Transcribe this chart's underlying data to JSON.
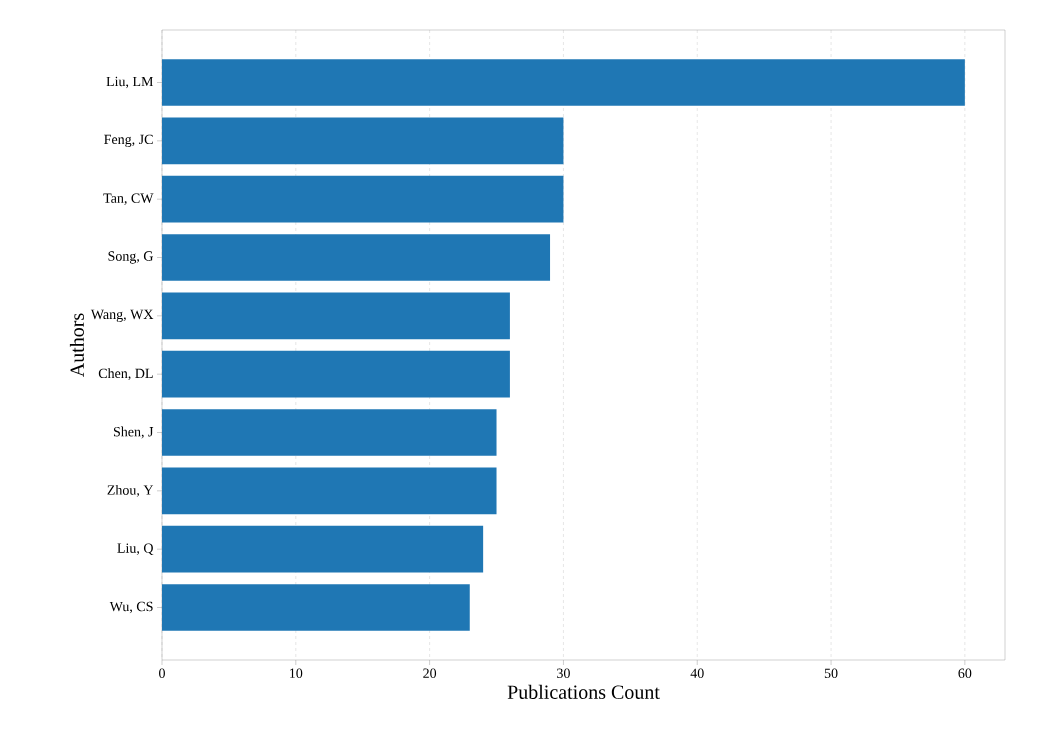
{
  "chart_data": {
    "type": "bar",
    "orientation": "horizontal",
    "xlabel": "Publications Count",
    "ylabel": "Authors",
    "categories": [
      "Liu, LM",
      "Feng, JC",
      "Tan, CW",
      "Song, G",
      "Wang, WX",
      "Chen, DL",
      "Shen, J",
      "Zhou, Y",
      "Liu, Q",
      "Wu, CS"
    ],
    "values": [
      60,
      30,
      30,
      29,
      26,
      26,
      25,
      25,
      24,
      23
    ],
    "color": "#1f77b4",
    "xlim": [
      0,
      63
    ],
    "xticks": [
      0,
      10,
      20,
      30,
      40,
      50,
      60
    ],
    "grid": "x"
  }
}
